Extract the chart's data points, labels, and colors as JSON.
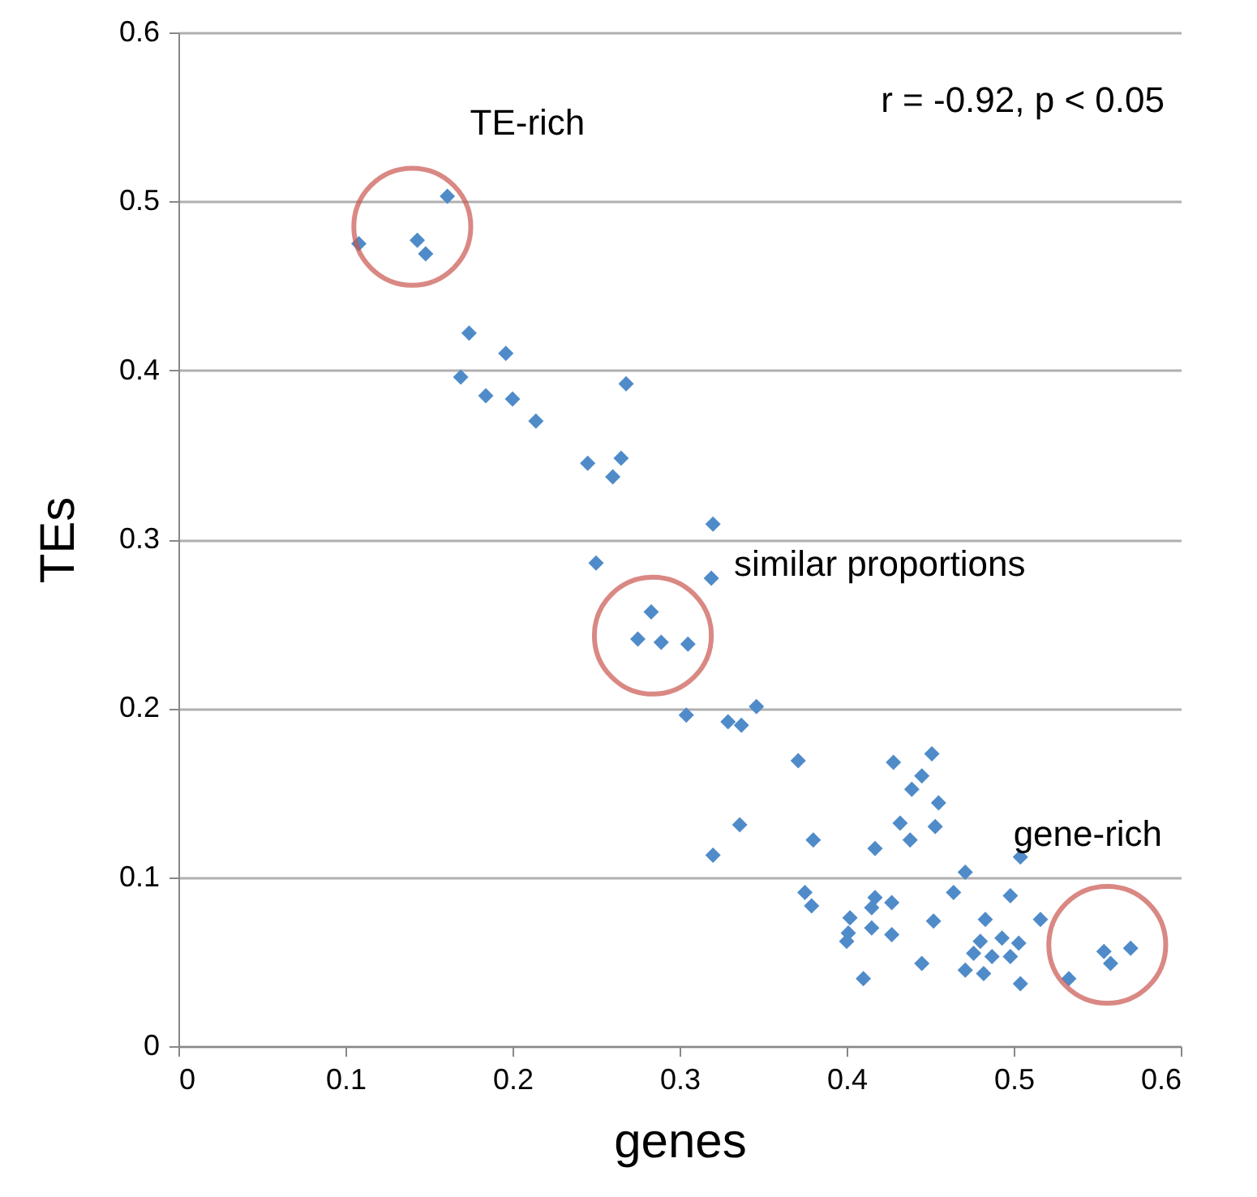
{
  "chart_data": {
    "type": "scatter",
    "xlabel": "genes",
    "ylabel": "TEs",
    "x": [
      0.108,
      0.143,
      0.148,
      0.161,
      0.174,
      0.169,
      0.184,
      0.196,
      0.2,
      0.214,
      0.268,
      0.245,
      0.265,
      0.26,
      0.25,
      0.32,
      0.319,
      0.283,
      0.275,
      0.289,
      0.305,
      0.304,
      0.329,
      0.337,
      0.346,
      0.371,
      0.336,
      0.32,
      0.38,
      0.417,
      0.428,
      0.451,
      0.445,
      0.439,
      0.455,
      0.432,
      0.438,
      0.453,
      0.504,
      0.471,
      0.464,
      0.498,
      0.375,
      0.379,
      0.402,
      0.401,
      0.4,
      0.417,
      0.415,
      0.427,
      0.415,
      0.427,
      0.452,
      0.445,
      0.41,
      0.483,
      0.493,
      0.503,
      0.48,
      0.476,
      0.487,
      0.498,
      0.471,
      0.482,
      0.504,
      0.516,
      0.533,
      0.554,
      0.558,
      0.57
    ],
    "series": [
      {
        "color": "#4f8bc9",
        "values": [
          0.475,
          0.477,
          0.469,
          0.503,
          0.422,
          0.396,
          0.385,
          0.41,
          0.383,
          0.37,
          0.392,
          0.345,
          0.348,
          0.337,
          0.286,
          0.309,
          0.277,
          0.257,
          0.241,
          0.239,
          0.238,
          0.196,
          0.192,
          0.19,
          0.201,
          0.169,
          0.131,
          0.113,
          0.122,
          0.117,
          0.168,
          0.173,
          0.16,
          0.152,
          0.144,
          0.132,
          0.122,
          0.13,
          0.112,
          0.103,
          0.091,
          0.089,
          0.091,
          0.083,
          0.076,
          0.067,
          0.062,
          0.088,
          0.082,
          0.085,
          0.07,
          0.066,
          0.074,
          0.049,
          0.04,
          0.075,
          0.064,
          0.061,
          0.062,
          0.055,
          0.053,
          0.053,
          0.045,
          0.043,
          0.037,
          0.075,
          0.04,
          0.056,
          0.049,
          0.058
        ]
      }
    ],
    "marker": "diamond",
    "grid": "y",
    "xlim": [
      0,
      0.6
    ],
    "xticks": [
      0,
      0.1,
      0.2,
      0.3,
      0.4,
      0.5,
      0.6
    ],
    "ylim": [
      0,
      0.6
    ],
    "yticks": [
      0,
      0.1,
      0.2,
      0.3,
      0.4,
      0.5,
      0.6
    ],
    "annotations": [
      {
        "text": "TE-rich",
        "x": 0.14,
        "y": 0.485
      },
      {
        "text": "similar proportions",
        "x": 0.284,
        "y": 0.243
      },
      {
        "text": "gene-rich",
        "x": 0.556,
        "y": 0.06
      },
      "r = -0.92, p < 0.05"
    ]
  }
}
